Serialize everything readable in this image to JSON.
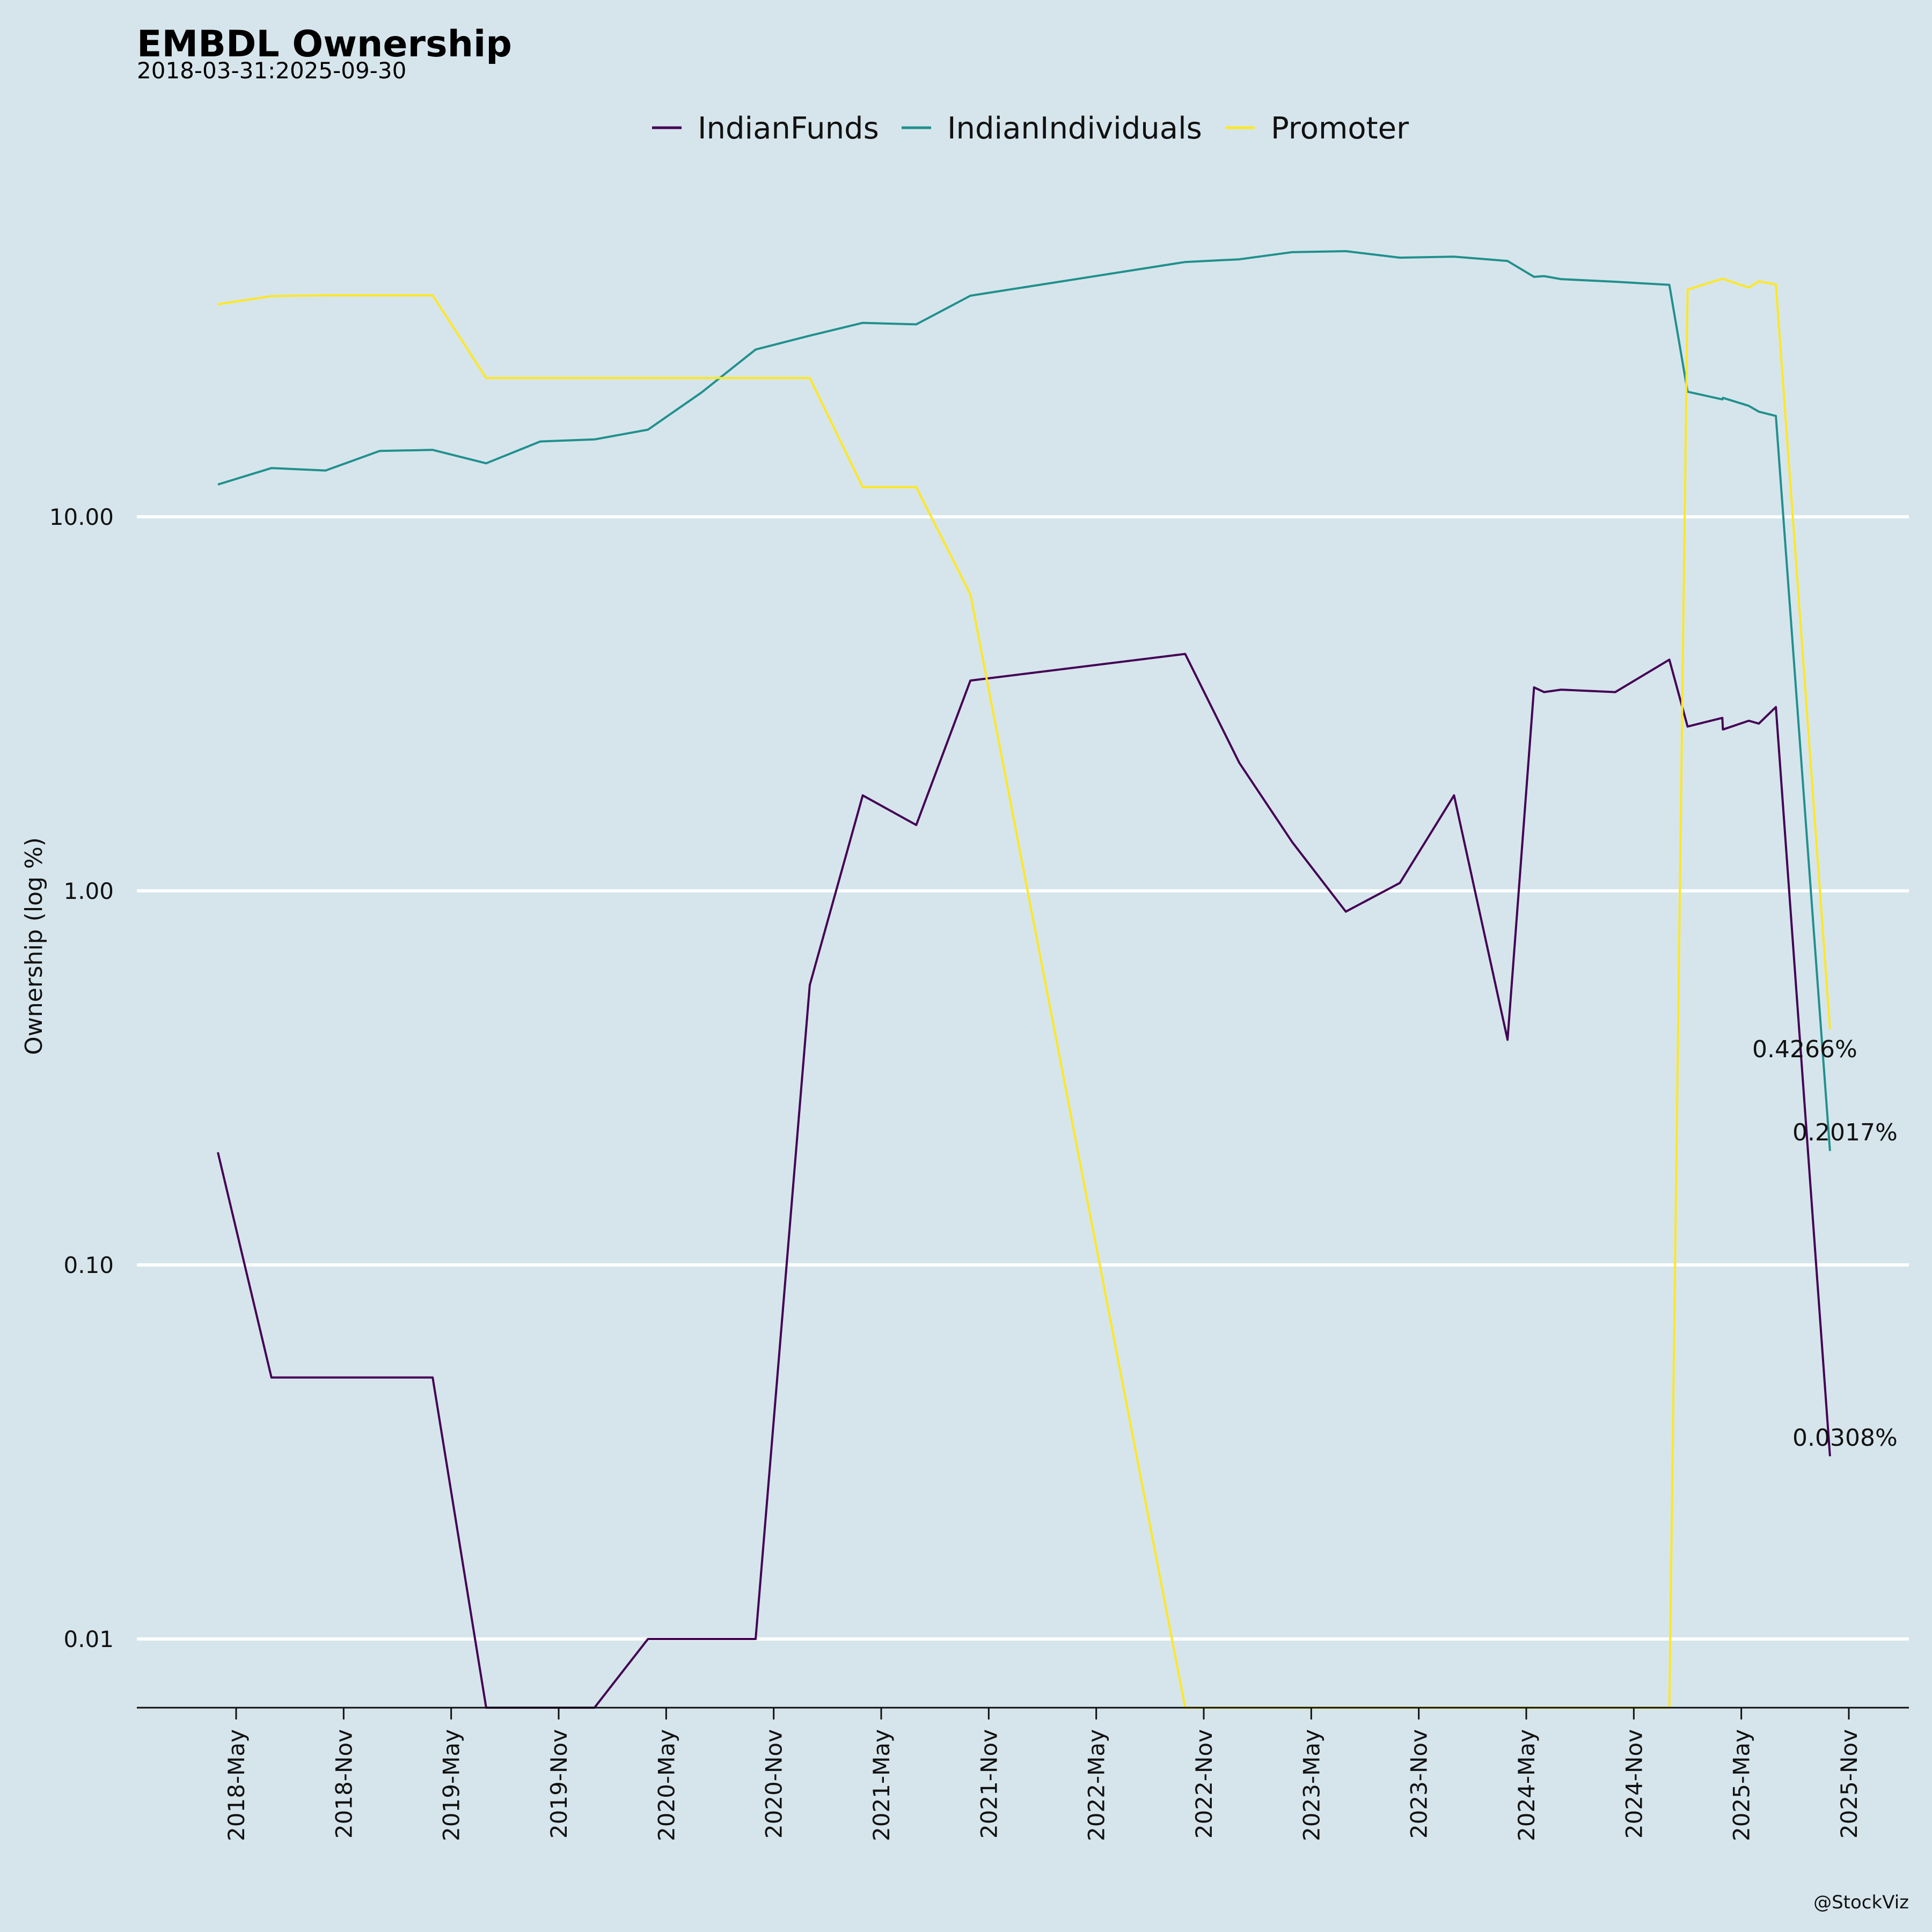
{
  "chart_data": {
    "type": "line",
    "title": "EMBDL Ownership",
    "subtitle": "2018-03-31:2025-09-30",
    "ylabel": "Ownership (log %)",
    "xlabel": "",
    "y_scale": "log",
    "ylim": [
      0.0065,
      90
    ],
    "y_ticks": [
      {
        "value": 10,
        "label": "10.00"
      },
      {
        "value": 1,
        "label": "1.00"
      },
      {
        "value": 0.1,
        "label": "0.10"
      },
      {
        "value": 0.01,
        "label": "0.01"
      }
    ],
    "x_ticks": [
      "2018-May",
      "2018-Nov",
      "2019-May",
      "2019-Nov",
      "2020-May",
      "2020-Nov",
      "2021-May",
      "2021-Nov",
      "2022-May",
      "2022-Nov",
      "2023-May",
      "2023-Nov",
      "2024-May",
      "2024-Nov",
      "2025-May",
      "2025-Nov"
    ],
    "grid": "horizontal",
    "legend_position": "top-center",
    "credit": "@StockViz",
    "series": [
      {
        "name": "IndianFunds",
        "color": "#440154",
        "points": [
          [
            "2018-03-31",
            0.2
          ],
          [
            "2018-06-30",
            0.05
          ],
          [
            "2018-09-30",
            0.05
          ],
          [
            "2018-12-31",
            0.05
          ],
          [
            "2019-03-31",
            0.05
          ],
          [
            "2019-06-30",
            0.0065
          ],
          [
            "2019-09-30",
            0.0065
          ],
          [
            "2019-12-31",
            0.0065
          ],
          [
            "2020-03-31",
            0.01
          ],
          [
            "2020-06-30",
            0.01
          ],
          [
            "2020-09-30",
            0.01
          ],
          [
            "2020-12-31",
            0.56
          ],
          [
            "2021-03-31",
            1.8
          ],
          [
            "2021-06-30",
            1.5
          ],
          [
            "2021-09-30",
            3.65
          ],
          [
            "2022-09-30",
            4.3
          ],
          [
            "2022-12-31",
            2.2
          ],
          [
            "2023-03-31",
            1.35
          ],
          [
            "2023-06-30",
            0.88
          ],
          [
            "2023-09-30",
            1.05
          ],
          [
            "2023-12-31",
            1.8
          ],
          [
            "2024-03-31",
            0.4
          ],
          [
            "2024-05-15",
            3.5
          ],
          [
            "2024-06-01",
            3.4
          ],
          [
            "2024-06-30",
            3.45
          ],
          [
            "2024-09-30",
            3.4
          ],
          [
            "2024-12-31",
            4.15
          ],
          [
            "2025-01-31",
            2.75
          ],
          [
            "2025-03-31",
            2.9
          ],
          [
            "2025-04-01",
            2.7
          ],
          [
            "2025-05-15",
            2.85
          ],
          [
            "2025-06-01",
            2.8
          ],
          [
            "2025-06-30",
            3.1
          ],
          [
            "2025-09-30",
            0.0308
          ]
        ]
      },
      {
        "name": "IndianIndividuals",
        "color": "#21908d",
        "points": [
          [
            "2018-03-31",
            12.2
          ],
          [
            "2018-06-30",
            13.5
          ],
          [
            "2018-09-30",
            13.3
          ],
          [
            "2018-12-31",
            15.0
          ],
          [
            "2019-03-31",
            15.1
          ],
          [
            "2019-06-30",
            13.9
          ],
          [
            "2019-09-30",
            15.9
          ],
          [
            "2019-12-31",
            16.1
          ],
          [
            "2020-03-31",
            17.1
          ],
          [
            "2020-06-30",
            21.5
          ],
          [
            "2020-09-30",
            28.0
          ],
          [
            "2020-12-31",
            30.5
          ],
          [
            "2021-03-31",
            33.0
          ],
          [
            "2021-06-30",
            32.7
          ],
          [
            "2021-09-30",
            39.0
          ],
          [
            "2022-09-30",
            48.0
          ],
          [
            "2022-12-31",
            48.8
          ],
          [
            "2023-03-31",
            51.0
          ],
          [
            "2023-06-30",
            51.3
          ],
          [
            "2023-09-30",
            49.3
          ],
          [
            "2023-12-31",
            49.6
          ],
          [
            "2024-03-31",
            48.3
          ],
          [
            "2024-05-15",
            43.8
          ],
          [
            "2024-06-01",
            44.0
          ],
          [
            "2024-06-30",
            43.2
          ],
          [
            "2024-09-30",
            42.5
          ],
          [
            "2024-12-31",
            41.7
          ],
          [
            "2025-01-31",
            21.6
          ],
          [
            "2025-03-31",
            20.6
          ],
          [
            "2025-04-01",
            20.8
          ],
          [
            "2025-05-15",
            19.8
          ],
          [
            "2025-06-01",
            19.1
          ],
          [
            "2025-06-30",
            18.6
          ],
          [
            "2025-09-30",
            0.2017
          ]
        ]
      },
      {
        "name": "Promoter",
        "color": "#fde725",
        "points": [
          [
            "2018-03-31",
            37.0
          ],
          [
            "2018-06-30",
            38.9
          ],
          [
            "2018-09-30",
            39.1
          ],
          [
            "2018-12-31",
            39.1
          ],
          [
            "2019-03-31",
            39.1
          ],
          [
            "2019-06-30",
            23.5
          ],
          [
            "2019-09-30",
            23.5
          ],
          [
            "2019-12-31",
            23.5
          ],
          [
            "2020-03-31",
            23.5
          ],
          [
            "2020-06-30",
            23.5
          ],
          [
            "2020-09-30",
            23.5
          ],
          [
            "2020-12-31",
            23.5
          ],
          [
            "2021-03-31",
            12.0
          ],
          [
            "2021-06-30",
            12.0
          ],
          [
            "2021-09-30",
            6.2
          ],
          [
            "2022-09-30",
            0.0065
          ],
          [
            "2024-12-31",
            0.0065
          ],
          [
            "2025-01-31",
            40.5
          ],
          [
            "2025-03-31",
            43.3
          ],
          [
            "2025-05-15",
            41.0
          ],
          [
            "2025-06-01",
            42.6
          ],
          [
            "2025-06-30",
            41.8
          ],
          [
            "2025-09-30",
            0.4266
          ]
        ]
      }
    ],
    "end_labels": [
      {
        "series": "Promoter",
        "text": "0.4266%",
        "value": 0.4266
      },
      {
        "series": "IndianIndividuals",
        "text": "0.2017%",
        "value": 0.2017
      },
      {
        "series": "IndianFunds",
        "text": "0.0308%",
        "value": 0.0308
      }
    ]
  }
}
